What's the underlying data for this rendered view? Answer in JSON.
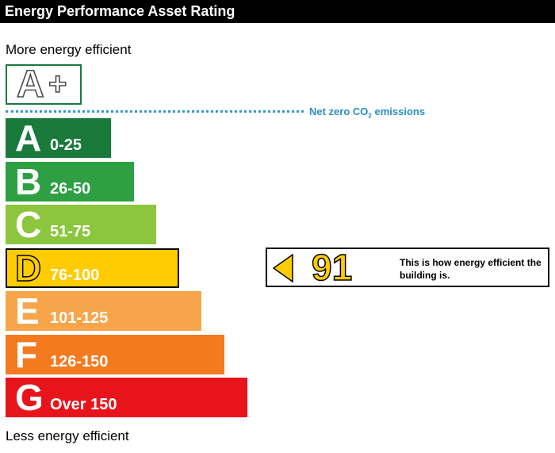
{
  "title": "Energy Performance Asset Rating",
  "top_caption": "More energy efficient",
  "bottom_caption": "Less energy efficient",
  "aplus": {
    "letter": "A",
    "plus": "+"
  },
  "net_zero": {
    "prefix": "Net zero CO",
    "subscript": "2",
    "suffix": " emissions"
  },
  "chart_data": {
    "type": "bar",
    "categories": [
      "A",
      "B",
      "C",
      "D",
      "E",
      "F",
      "G"
    ],
    "ranges": [
      "0-25",
      "26-50",
      "51-75",
      "76-100",
      "101-125",
      "126-150",
      "Over 150"
    ],
    "colors": [
      "#1a7a3c",
      "#2ea043",
      "#8cc63e",
      "#ffcc00",
      "#f7a54b",
      "#f47a20",
      "#e8141b"
    ],
    "current_band": "D",
    "current_rating": 91,
    "rating_note": "This is how energy efficient the building is.",
    "rating_color": "#ffcc00"
  }
}
